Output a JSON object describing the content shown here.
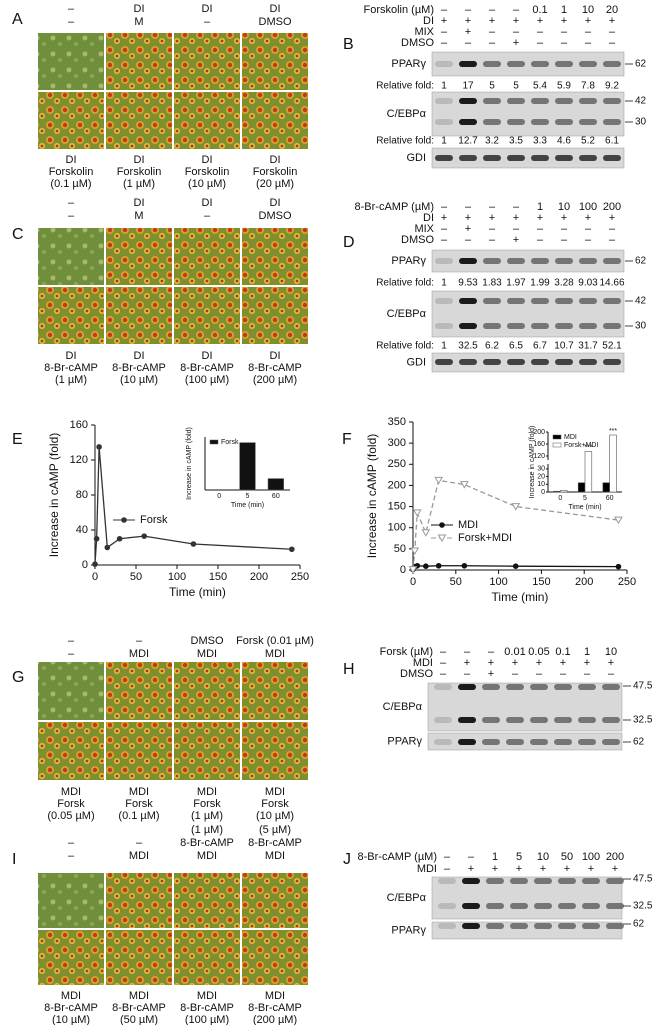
{
  "photo_panels": [
    {
      "label": "A",
      "headers": [
        [
          "–",
          "–"
        ],
        [
          "DI",
          "M"
        ],
        [
          "DI",
          "–"
        ],
        [
          "DI",
          "DMSO"
        ]
      ],
      "captions": [
        [
          "DI",
          "Forskolin",
          "(0.1 µM)"
        ],
        [
          "DI",
          "Forskolin",
          "(1 µM)"
        ],
        [
          "DI",
          "Forskolin",
          "(10 µM)"
        ],
        [
          "DI",
          "Forskolin",
          "(20 µM)"
        ]
      ]
    },
    {
      "label": "C",
      "headers": [
        [
          "–",
          "–"
        ],
        [
          "DI",
          "M"
        ],
        [
          "DI",
          "–"
        ],
        [
          "DI",
          "DMSO"
        ]
      ],
      "captions": [
        [
          "DI",
          "8-Br-cAMP",
          "(1 µM)"
        ],
        [
          "DI",
          "8-Br-cAMP",
          "(10 µM)"
        ],
        [
          "DI",
          "8-Br-cAMP",
          "(100 µM)"
        ],
        [
          "DI",
          "8-Br-cAMP",
          "(200 µM)"
        ]
      ]
    },
    {
      "label": "G",
      "headers": [
        [
          "–",
          "–"
        ],
        [
          "–",
          "MDI"
        ],
        [
          "DMSO",
          "MDI"
        ],
        [
          "Forsk (0.01 µM)",
          "MDI"
        ]
      ],
      "captions": [
        [
          "MDI",
          "Forsk",
          "(0.05 µM)"
        ],
        [
          "MDI",
          "Forsk",
          "(0.1 µM)"
        ],
        [
          "MDI",
          "Forsk",
          "(1 µM)"
        ],
        [
          "MDI",
          "Forsk",
          "(10 µM)"
        ]
      ]
    },
    {
      "label": "I",
      "headers": [
        [
          "–",
          "–"
        ],
        [
          "–",
          "MDI"
        ],
        [
          "(1 µM)",
          "8-Br-cAMP",
          "MDI"
        ],
        [
          "(5 µM)",
          "8-Br-cAMP",
          "MDI"
        ]
      ],
      "captions": [
        [
          "MDI",
          "8-Br-cAMP",
          "(10 µM)"
        ],
        [
          "MDI",
          "8-Br-cAMP",
          "(50 µM)"
        ],
        [
          "MDI",
          "8-Br-cAMP",
          "(100 µM)"
        ],
        [
          "MDI",
          "8-Br-cAMP",
          "(200 µM)"
        ]
      ]
    }
  ],
  "blot_panels": [
    {
      "label": "B",
      "treatments": [
        {
          "name": "Forskolin (µM)",
          "lanes": [
            "–",
            "–",
            "–",
            "–",
            "0.1",
            "1",
            "10",
            "20"
          ]
        },
        {
          "name": "DI",
          "lanes": [
            "+",
            "+",
            "+",
            "+",
            "+",
            "+",
            "+",
            "+"
          ]
        },
        {
          "name": "MIX",
          "lanes": [
            "–",
            "+",
            "–",
            "–",
            "–",
            "–",
            "–",
            "–"
          ]
        },
        {
          "name": "DMSO",
          "lanes": [
            "–",
            "–",
            "–",
            "+",
            "–",
            "–",
            "–",
            "–"
          ]
        }
      ],
      "rows": [
        {
          "name": "PPARγ",
          "markers": [
            "62"
          ]
        },
        {
          "name": "Relative fold:",
          "folds": [
            "1",
            "17",
            "5",
            "5",
            "5.4",
            "5.9",
            "7.8",
            "9.2"
          ]
        },
        {
          "name": "C/EBPα",
          "markers": [
            "42",
            "30"
          ]
        },
        {
          "name": "Relative fold:",
          "folds": [
            "1",
            "12.7",
            "3.2",
            "3.5",
            "3.3",
            "4.6",
            "5.2",
            "6.1"
          ]
        },
        {
          "name": "GDI"
        }
      ]
    },
    {
      "label": "D",
      "treatments": [
        {
          "name": "8-Br-cAMP (µM)",
          "lanes": [
            "–",
            "–",
            "–",
            "–",
            "1",
            "10",
            "100",
            "200"
          ]
        },
        {
          "name": "DI",
          "lanes": [
            "+",
            "+",
            "+",
            "+",
            "+",
            "+",
            "+",
            "+"
          ]
        },
        {
          "name": "MIX",
          "lanes": [
            "–",
            "+",
            "–",
            "–",
            "–",
            "–",
            "–",
            "–"
          ]
        },
        {
          "name": "DMSO",
          "lanes": [
            "–",
            "–",
            "–",
            "+",
            "–",
            "–",
            "–",
            "–"
          ]
        }
      ],
      "rows": [
        {
          "name": "PPARγ",
          "markers": [
            "62"
          ]
        },
        {
          "name": "Relative fold:",
          "folds": [
            "1",
            "9.53",
            "1.83",
            "1.97",
            "1.99",
            "3.28",
            "9.03",
            "14.66"
          ]
        },
        {
          "name": "C/EBPα",
          "markers": [
            "42",
            "30"
          ]
        },
        {
          "name": "Relative fold:",
          "folds": [
            "1",
            "32.5",
            "6.2",
            "6.5",
            "6.7",
            "10.7",
            "31.7",
            "52.1"
          ]
        },
        {
          "name": "GDI"
        }
      ]
    },
    {
      "label": "H",
      "treatments": [
        {
          "name": "Forsk (µM)",
          "lanes": [
            "–",
            "–",
            "–",
            "0.01",
            "0.05",
            "0.1",
            "1",
            "10"
          ]
        },
        {
          "name": "MDI",
          "lanes": [
            "–",
            "+",
            "+",
            "+",
            "+",
            "+",
            "+",
            "+"
          ]
        },
        {
          "name": "DMSO",
          "lanes": [
            "–",
            "–",
            "+",
            "–",
            "–",
            "–",
            "–",
            "–"
          ]
        }
      ],
      "rows": [
        {
          "name": "C/EBPα",
          "markers": [
            "47.5",
            "32.5"
          ]
        },
        {
          "name": "PPARγ",
          "markers": [
            "62"
          ]
        }
      ]
    },
    {
      "label": "J",
      "treatments": [
        {
          "name": "8-Br-cAMP (µM)",
          "lanes": [
            "–",
            "–",
            "1",
            "5",
            "10",
            "50",
            "100",
            "200"
          ]
        },
        {
          "name": "MDI",
          "lanes": [
            "–",
            "+",
            "+",
            "+",
            "+",
            "+",
            "+",
            "+"
          ]
        }
      ],
      "rows": [
        {
          "name": "C/EBPα",
          "markers": [
            "47.5",
            "32.5"
          ]
        },
        {
          "name": "PPARγ",
          "markers": [
            "62"
          ]
        }
      ]
    }
  ],
  "chart_data": [
    {
      "type": "line",
      "label": "E",
      "x_label": "Time (min)",
      "y_label": "Increase in cAMP (fold)",
      "x": [
        0,
        2,
        5,
        15,
        30,
        60,
        120,
        240
      ],
      "series": [
        {
          "name": "Forsk",
          "color": "#333333",
          "marker": "circle",
          "dashed": false,
          "values": [
            1,
            30,
            135,
            20,
            30,
            33,
            24,
            18
          ]
        }
      ],
      "xlim": [
        0,
        250
      ],
      "ylim": [
        0,
        160
      ],
      "xticks": [
        0,
        50,
        100,
        150,
        200,
        250
      ],
      "yticks": [
        0,
        40,
        80,
        120,
        160
      ],
      "legend": "lower-left"
    },
    {
      "type": "bar",
      "x_label": "Time (min)",
      "y_label": "Increase in cAMP (fold)",
      "categories": [
        "0",
        "5",
        "60"
      ],
      "series": [
        {
          "name": "Forsk",
          "color": "#111111",
          "values": [
            0,
            125,
            30
          ]
        }
      ],
      "ylim": [
        0,
        140
      ],
      "legend": "upper-left"
    },
    {
      "type": "line",
      "label": "F",
      "x_label": "Time (min)",
      "y_label": "Increase in cAMP (fold)",
      "x": [
        0,
        2,
        5,
        15,
        30,
        60,
        120,
        240
      ],
      "series": [
        {
          "name": "MDI",
          "color": "#111111",
          "marker": "circle",
          "dashed": false,
          "values": [
            1,
            8,
            10,
            9,
            10,
            10,
            9,
            8
          ]
        },
        {
          "name": "Forsk+MDI",
          "color": "#999999",
          "marker": "triangle",
          "dashed": true,
          "values": [
            1,
            45,
            135,
            88,
            212,
            202,
            150,
            118
          ]
        }
      ],
      "xlim": [
        0,
        250
      ],
      "ylim": [
        0,
        350
      ],
      "xticks": [
        0,
        50,
        100,
        150,
        200,
        250
      ],
      "yticks": [
        0,
        50,
        100,
        150,
        200,
        250,
        300,
        350
      ],
      "legend": "lower-left"
    },
    {
      "type": "bar",
      "x_label": "Time (min)",
      "y_label": "Increase in cAMP (fold)",
      "categories": [
        "0",
        "5",
        "60"
      ],
      "series": [
        {
          "name": "MDI",
          "color": "#000000",
          "values": [
            1,
            12,
            12
          ]
        },
        {
          "name": "Forsk+MDI",
          "color": "#ffffff",
          "values": [
            2,
            135,
            190
          ]
        }
      ],
      "ylim": [
        0,
        200
      ],
      "axis_break": [
        35,
        110
      ],
      "yticks": [
        0,
        10,
        20,
        30,
        120,
        160,
        200
      ],
      "annotations": [
        "***",
        "***"
      ],
      "legend": "upper-left"
    }
  ]
}
